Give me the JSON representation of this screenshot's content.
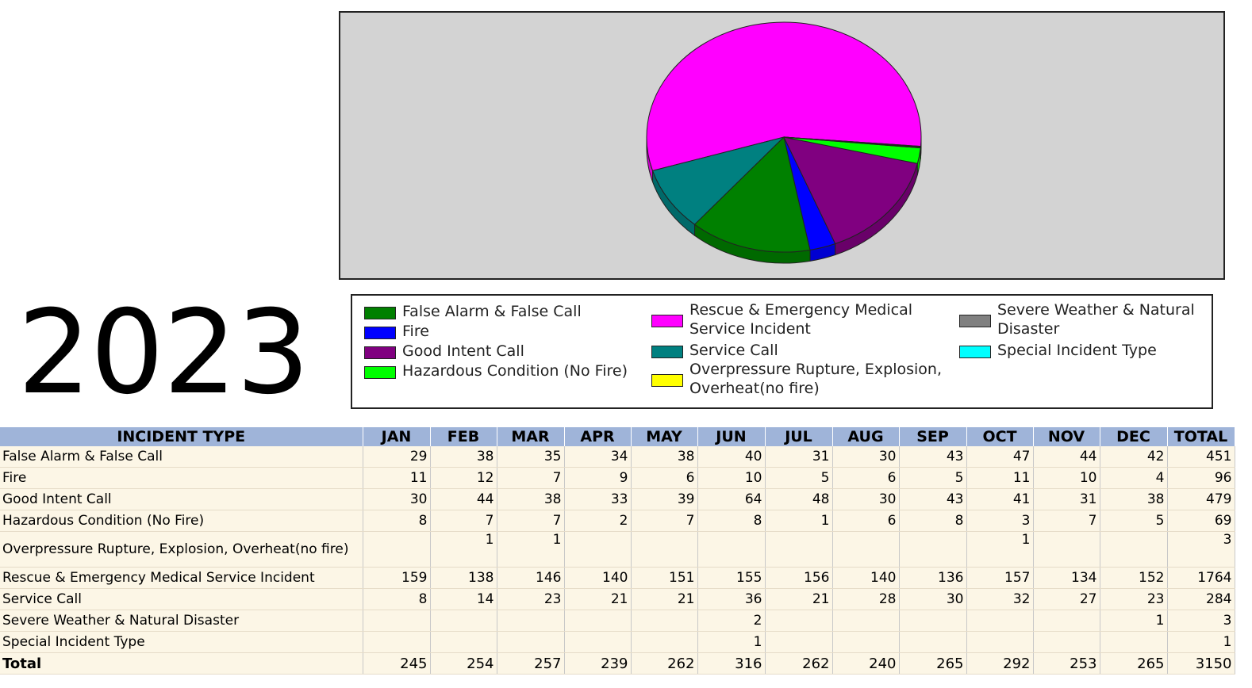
{
  "year": "2023",
  "colors": {
    "False Alarm & False Call": "#008000",
    "Fire": "#0000ff",
    "Good Intent Call": "#800080",
    "Hazardous Condition (No Fire)": "#00ff00",
    "Rescue & Emergency Medical Service Incident": "#ff00ff",
    "Service Call": "#008080",
    "Overpressure Rupture, Explosion, Overheat(no fire)": "#ffff00",
    "Severe Weather & Natural Disaster": "#808080",
    "Special Incident Type": "#00ffff"
  },
  "legend": [
    {
      "label": "False Alarm & False Call",
      "color": "#008000"
    },
    {
      "label": "Fire",
      "color": "#0000ff"
    },
    {
      "label": "Good Intent Call",
      "color": "#800080"
    },
    {
      "label": "Hazardous Condition (No Fire)",
      "color": "#00ff00"
    },
    {
      "label": "Rescue & Emergency Medical Service Incident",
      "color": "#ff00ff"
    },
    {
      "label": "Service Call",
      "color": "#008080"
    },
    {
      "label": "Overpressure Rupture, Explosion, Overheat(no fire)",
      "color": "#ffff00"
    },
    {
      "label": "Severe Weather & Natural Disaster",
      "color": "#808080"
    },
    {
      "label": "Special Incident Type",
      "color": "#00ffff"
    }
  ],
  "chart_data": {
    "type": "pie",
    "title": "",
    "categories": [
      "Rescue & Emergency Medical Service Incident",
      "Service Call",
      "False Alarm & False Call",
      "Fire",
      "Good Intent Call",
      "Hazardous Condition (No Fire)",
      "Overpressure Rupture, Explosion, Overheat(no fire)",
      "Severe Weather & Natural Disaster",
      "Special Incident Type"
    ],
    "values": [
      1764,
      284,
      451,
      96,
      479,
      69,
      3,
      3,
      1
    ],
    "legend": "below"
  },
  "table": {
    "headers": [
      "INCIDENT TYPE",
      "JAN",
      "FEB",
      "MAR",
      "APR",
      "MAY",
      "JUN",
      "JUL",
      "AUG",
      "SEP",
      "OCT",
      "NOV",
      "DEC",
      "TOTAL"
    ],
    "rows": [
      {
        "label": "False Alarm & False Call",
        "values": [
          "29",
          "38",
          "35",
          "34",
          "38",
          "40",
          "31",
          "30",
          "43",
          "47",
          "44",
          "42",
          "451"
        ]
      },
      {
        "label": "Fire",
        "values": [
          "11",
          "12",
          "7",
          "9",
          "6",
          "10",
          "5",
          "6",
          "5",
          "11",
          "10",
          "4",
          "96"
        ]
      },
      {
        "label": "Good Intent Call",
        "values": [
          "30",
          "44",
          "38",
          "33",
          "39",
          "64",
          "48",
          "30",
          "43",
          "41",
          "31",
          "38",
          "479"
        ]
      },
      {
        "label": "Hazardous Condition (No Fire)",
        "values": [
          "8",
          "7",
          "7",
          "2",
          "7",
          "8",
          "1",
          "6",
          "8",
          "3",
          "7",
          "5",
          "69"
        ]
      },
      {
        "label": "Overpressure Rupture, Explosion, Overheat(no fire)",
        "values": [
          "",
          "1",
          "1",
          "",
          "",
          "",
          "",
          "",
          "",
          "1",
          "",
          "",
          "3"
        ]
      },
      {
        "label": "Rescue & Emergency Medical Service Incident",
        "values": [
          "159",
          "138",
          "146",
          "140",
          "151",
          "155",
          "156",
          "140",
          "136",
          "157",
          "134",
          "152",
          "1764"
        ]
      },
      {
        "label": "Service Call",
        "values": [
          "8",
          "14",
          "23",
          "21",
          "21",
          "36",
          "21",
          "28",
          "30",
          "32",
          "27",
          "23",
          "284"
        ]
      },
      {
        "label": "Severe Weather & Natural Disaster",
        "values": [
          "",
          "",
          "",
          "",
          "",
          "2",
          "",
          "",
          "",
          "",
          "",
          "1",
          "3"
        ]
      },
      {
        "label": "Special Incident Type",
        "values": [
          "",
          "",
          "",
          "",
          "",
          "1",
          "",
          "",
          "",
          "",
          "",
          "",
          "1"
        ]
      }
    ],
    "total": {
      "label": "Total",
      "values": [
        "245",
        "254",
        "257",
        "239",
        "262",
        "316",
        "262",
        "240",
        "265",
        "292",
        "253",
        "265",
        "3150"
      ]
    }
  }
}
